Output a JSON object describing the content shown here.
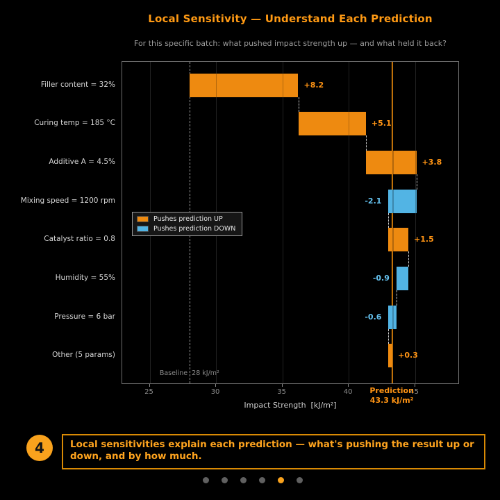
{
  "header": {
    "title": "Local Sensitivity — Understand Each Prediction",
    "subtitle": "For this specific batch: what pushed impact strength up — and what held it back?"
  },
  "chart_data": {
    "type": "bar",
    "subtype": "horizontal-waterfall",
    "title": "Local Sensitivity — Understand Each Prediction",
    "subtitle": "For this specific batch: what pushed impact strength up — and what held it back?",
    "categories": [
      "Filler content = 32%",
      "Curing temp = 185 °C",
      "Additive A = 4.5%",
      "Mixing speed = 1200 rpm",
      "Catalyst ratio = 0.8",
      "Humidity = 55%",
      "Pressure = 6 bar",
      "Other (5 params)"
    ],
    "values": [
      8.2,
      5.1,
      3.8,
      -2.1,
      1.5,
      -0.9,
      -0.6,
      0.3
    ],
    "value_labels": [
      "+8.2",
      "+5.1",
      "+3.8",
      "-2.1",
      "+1.5",
      "-0.9",
      "-0.6",
      "+0.3"
    ],
    "baseline": {
      "value": 28,
      "label": "Baseline  28 kJ/m²"
    },
    "prediction": {
      "value": 43.3,
      "label_title": "Prediction",
      "label_value": "43.3 kJ/m²"
    },
    "xlabel": "Impact Strength  [kJ/m²]",
    "xticks": [
      25,
      30,
      35,
      40,
      45
    ],
    "xlim": [
      22.93,
      48.37
    ],
    "grid": true,
    "legend_position": "center-left",
    "legend": [
      {
        "label": "Pushes prediction UP",
        "color": "#ee8a10"
      },
      {
        "label": "Pushes prediction DOWN",
        "color": "#52b4e4"
      }
    ],
    "colors": {
      "up": "#ee8a10",
      "down": "#52b4e4",
      "up_label": "#ff9414",
      "down_label": "#66c4f2",
      "prediction_line": "#e8890b",
      "prediction_text": "#ff9414"
    }
  },
  "footer": {
    "step_number": "4",
    "caption": "Local sensitivities explain each prediction — what's pushing the result up or down, and by how much.",
    "dots": {
      "count": 6,
      "active_index": 4,
      "active_color": "#f9a21d",
      "inactive_color": "#606060"
    }
  }
}
